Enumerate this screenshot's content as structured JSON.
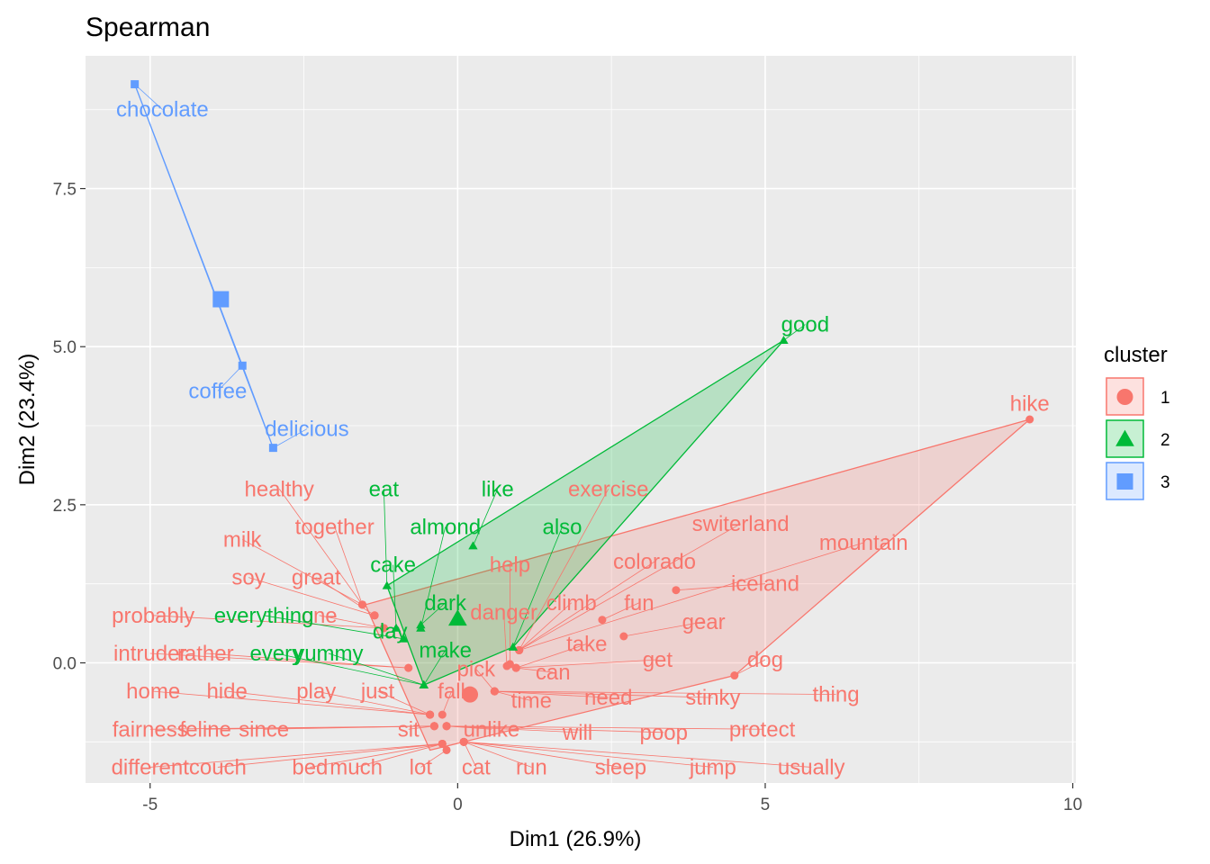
{
  "chart_data": {
    "type": "scatter",
    "title": "Spearman",
    "xlabel": "Dim1 (26.9%)",
    "ylabel": "Dim2 (23.4%)",
    "xlim": [
      -6.05,
      10.05
    ],
    "ylim": [
      -1.9,
      9.6
    ],
    "x_ticks": [
      -5,
      0,
      5,
      10
    ],
    "x_tick_labels": [
      "-5",
      "0",
      "5",
      "10"
    ],
    "y_ticks": [
      0,
      2.5,
      5,
      7.5
    ],
    "y_tick_labels": [
      "0.0",
      "2.5",
      "5.0",
      "7.5"
    ],
    "grid": true,
    "legend": {
      "title": "cluster",
      "placement": "right",
      "entries": [
        "1",
        "2",
        "3"
      ]
    },
    "colors": {
      "1": "#F8766D",
      "2": "#00BA38",
      "3": "#619CFF",
      "panel": "#EBEBEB",
      "grid": "#FFFFFF"
    },
    "clusters": [
      {
        "name": "1",
        "shape": "circle",
        "centroid": {
          "x": 0.2,
          "y": -0.5
        },
        "hull": [
          [
            9.3,
            3.85
          ],
          [
            -1.5,
            0.92
          ],
          [
            -0.45,
            -1.38
          ],
          [
            4.5,
            -0.2
          ]
        ],
        "points": [
          {
            "label": "hike",
            "x": 9.3,
            "y": 3.85,
            "lx": 9.3,
            "ly": 4.1
          },
          {
            "label": "dog",
            "x": 4.5,
            "y": -0.2,
            "lx": 5.0,
            "ly": 0.05
          },
          {
            "label": "iceland",
            "x": 3.55,
            "y": 1.15,
            "lx": 5.0,
            "ly": 1.25
          },
          {
            "label": "gear",
            "x": 2.7,
            "y": 0.42,
            "lx": 4.0,
            "ly": 0.65
          },
          {
            "label": "fun",
            "x": 2.35,
            "y": 0.68,
            "lx": 2.95,
            "ly": 0.95
          },
          {
            "label": "help",
            "x": 0.85,
            "y": -0.02,
            "lx": 0.85,
            "ly": 1.55
          },
          {
            "label": "exercise",
            "x": 1.0,
            "y": 0.2,
            "lx": 2.45,
            "ly": 2.75
          },
          {
            "label": "switerland",
            "x": 1.0,
            "y": 0.2,
            "lx": 4.6,
            "ly": 2.2
          },
          {
            "label": "mountain",
            "x": 1.0,
            "y": 0.2,
            "lx": 6.6,
            "ly": 1.9
          },
          {
            "label": "colorado",
            "x": 1.0,
            "y": 0.2,
            "lx": 3.2,
            "ly": 1.6
          },
          {
            "label": "climb",
            "x": 1.0,
            "y": 0.2,
            "lx": 1.85,
            "ly": 0.95
          },
          {
            "label": "danger",
            "x": 0.8,
            "y": -0.05,
            "lx": 0.75,
            "ly": 0.8
          },
          {
            "label": "take",
            "x": 0.95,
            "y": -0.08,
            "lx": 2.1,
            "ly": 0.3
          },
          {
            "label": "get",
            "x": 0.95,
            "y": -0.08,
            "lx": 3.25,
            "ly": 0.05
          },
          {
            "label": "can",
            "x": 0.95,
            "y": -0.08,
            "lx": 1.55,
            "ly": -0.15
          },
          {
            "label": "pick",
            "x": 0.6,
            "y": -0.45,
            "lx": 0.3,
            "ly": -0.1
          },
          {
            "label": "time",
            "x": 0.6,
            "y": -0.45,
            "lx": 1.2,
            "ly": -0.6
          },
          {
            "label": "need",
            "x": 0.6,
            "y": -0.45,
            "lx": 2.45,
            "ly": -0.55
          },
          {
            "label": "stinky",
            "x": 0.6,
            "y": -0.45,
            "lx": 4.15,
            "ly": -0.55
          },
          {
            "label": "thing",
            "x": 0.6,
            "y": -0.45,
            "lx": 6.15,
            "ly": -0.5
          },
          {
            "label": "healthy",
            "x": -1.55,
            "y": 0.92,
            "lx": -2.9,
            "ly": 2.75
          },
          {
            "label": "together",
            "x": -1.55,
            "y": 0.92,
            "lx": -2.0,
            "ly": 2.15
          },
          {
            "label": "milk",
            "x": -1.55,
            "y": 0.92,
            "lx": -3.5,
            "ly": 1.95
          },
          {
            "label": "soy",
            "x": -1.35,
            "y": 0.75,
            "lx": -3.4,
            "ly": 1.35
          },
          {
            "label": "great",
            "x": -1.35,
            "y": 0.75,
            "lx": -2.3,
            "ly": 1.35
          },
          {
            "label": "probably",
            "x": -1.2,
            "y": 0.55,
            "lx": -4.95,
            "ly": 0.75
          },
          {
            "label": "one",
            "x": -1.2,
            "y": 0.55,
            "lx": -2.25,
            "ly": 0.75
          },
          {
            "label": "intruder",
            "x": -0.8,
            "y": -0.08,
            "lx": -5.0,
            "ly": 0.15
          },
          {
            "label": "rather",
            "x": -0.8,
            "y": -0.08,
            "lx": -4.1,
            "ly": 0.15
          },
          {
            "label": "home",
            "x": -0.45,
            "y": -0.82,
            "lx": -4.95,
            "ly": -0.45
          },
          {
            "label": "hide",
            "x": -0.45,
            "y": -0.82,
            "lx": -3.75,
            "ly": -0.45
          },
          {
            "label": "play",
            "x": -0.45,
            "y": -0.82,
            "lx": -2.3,
            "ly": -0.45
          },
          {
            "label": "just",
            "x": -0.45,
            "y": -0.82,
            "lx": -1.3,
            "ly": -0.45
          },
          {
            "label": "fall",
            "x": -0.25,
            "y": -0.82,
            "lx": -0.1,
            "ly": -0.45
          },
          {
            "label": "fairness",
            "x": -0.38,
            "y": -1.0,
            "lx": -5.0,
            "ly": -1.05
          },
          {
            "label": "feline",
            "x": -0.38,
            "y": -1.0,
            "lx": -4.1,
            "ly": -1.05
          },
          {
            "label": "since",
            "x": -0.38,
            "y": -1.0,
            "lx": -3.15,
            "ly": -1.05
          },
          {
            "label": "sit",
            "x": -0.38,
            "y": -1.0,
            "lx": -0.8,
            "ly": -1.05
          },
          {
            "label": "unlike",
            "x": -0.18,
            "y": -1.0,
            "lx": 0.55,
            "ly": -1.05
          },
          {
            "label": "will",
            "x": -0.18,
            "y": -1.0,
            "lx": 1.95,
            "ly": -1.1
          },
          {
            "label": "poop",
            "x": -0.18,
            "y": -1.0,
            "lx": 3.35,
            "ly": -1.1
          },
          {
            "label": "protect",
            "x": -0.18,
            "y": -1.0,
            "lx": 4.95,
            "ly": -1.05
          },
          {
            "label": "different",
            "x": -0.25,
            "y": -1.28,
            "lx": -5.0,
            "ly": -1.65
          },
          {
            "label": "couch",
            "x": -0.25,
            "y": -1.28,
            "lx": -3.9,
            "ly": -1.65
          },
          {
            "label": "bed",
            "x": -0.25,
            "y": -1.28,
            "lx": -2.4,
            "ly": -1.65
          },
          {
            "label": "much",
            "x": -0.25,
            "y": -1.28,
            "lx": -1.65,
            "ly": -1.65
          },
          {
            "label": "lot",
            "x": -0.18,
            "y": -1.38,
            "lx": -0.6,
            "ly": -1.65
          },
          {
            "label": "cat",
            "x": 0.1,
            "y": -1.25,
            "lx": 0.3,
            "ly": -1.65
          },
          {
            "label": "run",
            "x": 0.1,
            "y": -1.25,
            "lx": 1.2,
            "ly": -1.65
          },
          {
            "label": "sleep",
            "x": 0.1,
            "y": -1.25,
            "lx": 2.65,
            "ly": -1.65
          },
          {
            "label": "jump",
            "x": 0.1,
            "y": -1.25,
            "lx": 4.15,
            "ly": -1.65
          },
          {
            "label": "usually",
            "x": 0.1,
            "y": -1.25,
            "lx": 5.75,
            "ly": -1.65
          }
        ]
      },
      {
        "name": "2",
        "shape": "triangle",
        "centroid": {
          "x": 0.0,
          "y": 0.7
        },
        "hull": [
          [
            5.3,
            5.1
          ],
          [
            -1.15,
            1.22
          ],
          [
            -0.55,
            -0.35
          ],
          [
            0.9,
            0.25
          ]
        ],
        "points": [
          {
            "label": "good",
            "x": 5.3,
            "y": 5.1,
            "lx": 5.65,
            "ly": 5.35
          },
          {
            "label": "like",
            "x": 0.25,
            "y": 1.85,
            "lx": 0.65,
            "ly": 2.75
          },
          {
            "label": "eat",
            "x": -1.15,
            "y": 1.22,
            "lx": -1.2,
            "ly": 2.75
          },
          {
            "label": "almond",
            "x": -0.6,
            "y": 0.55,
            "lx": -0.2,
            "ly": 2.15
          },
          {
            "label": "also",
            "x": 0.9,
            "y": 0.25,
            "lx": 1.7,
            "ly": 2.15
          },
          {
            "label": "cake",
            "x": -1.0,
            "y": 0.55,
            "lx": -1.05,
            "ly": 1.55
          },
          {
            "label": "dark",
            "x": -0.6,
            "y": 0.6,
            "lx": -0.2,
            "ly": 0.95
          },
          {
            "label": "everything",
            "x": -0.88,
            "y": 0.38,
            "lx": -3.15,
            "ly": 0.75
          },
          {
            "label": "day",
            "x": -0.88,
            "y": 0.38,
            "lx": -1.1,
            "ly": 0.5
          },
          {
            "label": "make",
            "x": -0.55,
            "y": -0.35,
            "lx": -0.2,
            "ly": 0.2
          },
          {
            "label": "every",
            "x": -0.55,
            "y": -0.35,
            "lx": -2.95,
            "ly": 0.15
          },
          {
            "label": "yummy",
            "x": -0.55,
            "y": -0.35,
            "lx": -2.1,
            "ly": 0.15
          }
        ]
      },
      {
        "name": "3",
        "shape": "square",
        "centroid": {
          "x": -3.85,
          "y": 5.75
        },
        "hull": [
          [
            -5.25,
            9.15
          ],
          [
            -3.5,
            4.7
          ],
          [
            -3.0,
            3.4
          ]
        ],
        "points": [
          {
            "label": "chocolate",
            "x": -5.25,
            "y": 9.15,
            "lx": -4.8,
            "ly": 8.75
          },
          {
            "label": "coffee",
            "x": -3.5,
            "y": 4.7,
            "lx": -3.9,
            "ly": 4.3
          },
          {
            "label": "delicious",
            "x": -3.0,
            "y": 3.4,
            "lx": -2.45,
            "ly": 3.7
          }
        ]
      }
    ]
  }
}
